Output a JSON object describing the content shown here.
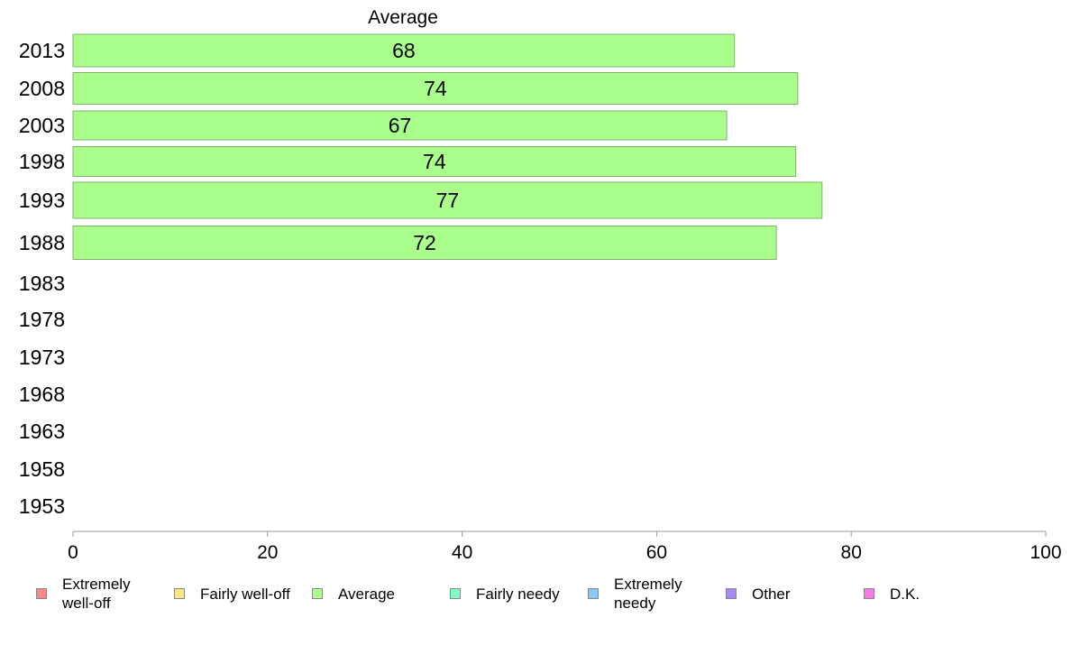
{
  "chart_data": {
    "type": "bar",
    "orientation": "horizontal",
    "title": "Average",
    "categories": [
      "2013",
      "2008",
      "2003",
      "1998",
      "1993",
      "1988",
      "1983",
      "1978",
      "1973",
      "1968",
      "1963",
      "1958",
      "1953"
    ],
    "series": [
      {
        "name": "Average",
        "color": "#aaff8c",
        "values": [
          68,
          74.5,
          67.2,
          74.3,
          77,
          72.3,
          null,
          null,
          null,
          null,
          null,
          null,
          null
        ],
        "data_labels": [
          "68",
          "74",
          "67",
          "74",
          "77",
          "72",
          "",
          "",
          "",
          "",
          "",
          "",
          ""
        ]
      }
    ],
    "xlim": [
      0,
      100
    ],
    "xticks": [
      "0",
      "20",
      "40",
      "60",
      "80",
      "100"
    ],
    "grid": false,
    "legend_position": "bottom",
    "legend": [
      {
        "label": "Extremely\nwell-off",
        "color": "#f78a8a"
      },
      {
        "label": "Fairly well-off",
        "color": "#ffe680"
      },
      {
        "label": "Average",
        "color": "#aaff8c"
      },
      {
        "label": "Fairly needy",
        "color": "#80ffc8"
      },
      {
        "label": "Extremely\nneedy",
        "color": "#8ac8f7"
      },
      {
        "label": "Other",
        "color": "#a58af7"
      },
      {
        "label": "D.K.",
        "color": "#f77ae6"
      }
    ]
  }
}
